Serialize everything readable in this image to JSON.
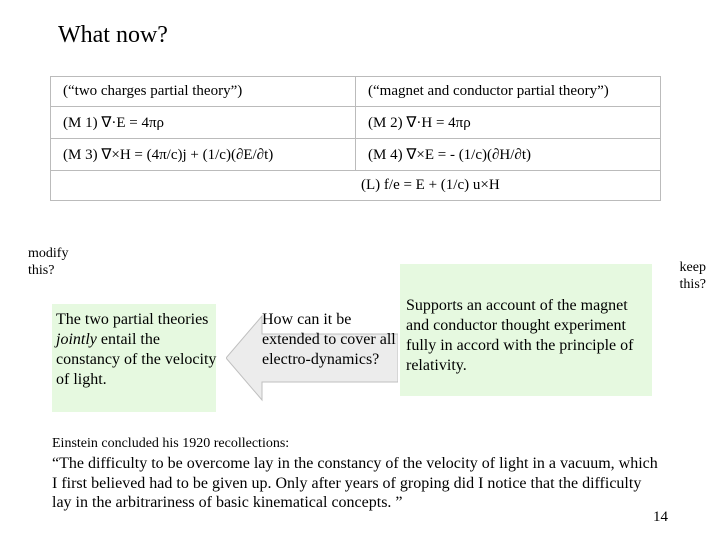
{
  "title": "What now?",
  "table": {
    "r0c0": "(“two charges partial theory”)",
    "r0c1": "(“magnet and conductor partial theory”)",
    "r1c0": "(M 1) ∇·E = 4πρ",
    "r1c1": "(M 2) ∇·H = 4πρ",
    "r2c0": "(M 3) ∇×H = (4π/c)j +  (1/c)(∂E/∂t)",
    "r2c1": "(M 4) ∇×E = -  (1/c)(∂H/∂t)",
    "r3": "(L)  f/e = E +  (1/c) u×H"
  },
  "modify": "modify\nthis?",
  "keep": "keep\nthis?",
  "left_para_a": "The two partial theories ",
  "left_para_b": "jointly",
  "left_para_c": " entail the constancy of the velocity of light.",
  "center_para": "How can it be extended to cover all electro-dynamics?",
  "right_para": "Supports an account of the magnet and conductor thought experiment fully in accord with the principle of relativity.",
  "conclusion_intro": "Einstein concluded his 1920 recollections:",
  "conclusion_quote": "“The difficulty to be overcome lay in the constancy of the velocity of light in a vacuum, which I first believed had to be given up. Only after years of groping did I notice that the difficulty lay in the arbitrariness of basic kinematical concepts. ”",
  "page_num": "14",
  "colors": {
    "highlight": "#e6f9e0",
    "arrow_fill": "#ececec",
    "arrow_stroke": "#bfbfbf"
  }
}
